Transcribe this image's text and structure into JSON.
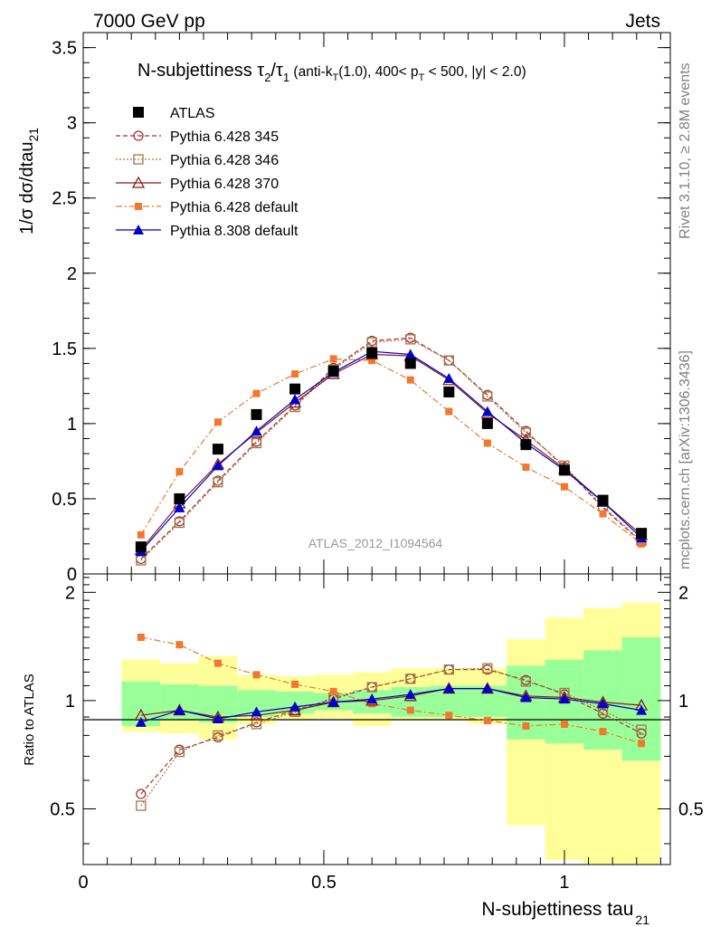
{
  "header": {
    "left": "7000 GeV pp",
    "right": "Jets"
  },
  "side_labels": {
    "rivet": "Rivet 3.1.10, ≥ 2.8M events",
    "mcplots": "mcplots.cern.ch [arXiv:1306.3436]"
  },
  "chart_data": {
    "type": "scatter",
    "title": "N-subjettiness τ₂/τ₁ (anti-k_T(1.0), 400< p_T < 500, |y| < 2.0)",
    "title_parts": {
      "main": "N-subjettiness τ",
      "sub1": "2",
      "slash": "/τ",
      "sub2": "1",
      "cond_a": " (anti-k",
      "cond_a_sub": "T",
      "cond_b": "(1.0), 400< p",
      "cond_b_sub": "T",
      "cond_c": " < 500, |y| < 2.0)"
    },
    "analysis_label": "ATLAS_2012_I1094564",
    "ylabel": "1/σ dσ/dtau",
    "ylabel_sub": "21",
    "xlabel": "N-subjettiness tau",
    "xlabel_sub": "21",
    "ratio_ylabel": "Ratio to ATLAS",
    "xlim": [
      0,
      1.22
    ],
    "ylim": [
      0,
      3.6
    ],
    "ratio_ylim": [
      0.35,
      2.25
    ],
    "x_ticks": [
      0,
      0.5,
      1
    ],
    "x_tick_labels": [
      "0",
      "0.5",
      "1"
    ],
    "y_ticks": [
      0,
      0.5,
      1,
      1.5,
      2,
      2.5,
      3,
      3.5
    ],
    "y_tick_labels": [
      "0",
      "0.5",
      "1",
      "1.5",
      "2",
      "2.5",
      "3",
      "3.5"
    ],
    "ratio_ticks": [
      0.5,
      1,
      2
    ],
    "ratio_tick_labels": [
      "0.5",
      "1",
      "2"
    ],
    "x": [
      0.12,
      0.2,
      0.28,
      0.36,
      0.44,
      0.52,
      0.6,
      0.68,
      0.76,
      0.84,
      0.92,
      1.0,
      1.08,
      1.16
    ],
    "bin_edges": [
      0.08,
      0.16,
      0.24,
      0.32,
      0.4,
      0.48,
      0.56,
      0.64,
      0.72,
      0.8,
      0.88,
      0.96,
      1.04,
      1.12,
      1.2
    ],
    "ratio_band_green": [
      [
        0.85,
        1.13
      ],
      [
        0.88,
        1.11
      ],
      [
        0.87,
        1.1
      ],
      [
        0.9,
        1.07
      ],
      [
        0.92,
        1.06
      ],
      [
        0.94,
        1.05
      ],
      [
        0.92,
        1.07
      ],
      [
        0.9,
        1.09
      ],
      [
        0.9,
        1.1
      ],
      [
        0.9,
        1.1
      ],
      [
        0.78,
        1.25
      ],
      [
        0.76,
        1.3
      ],
      [
        0.73,
        1.38
      ],
      [
        0.68,
        1.5
      ]
    ],
    "ratio_band_yellow": [
      [
        0.82,
        1.3
      ],
      [
        0.81,
        1.27
      ],
      [
        0.78,
        1.33
      ],
      [
        0.86,
        1.18
      ],
      [
        0.88,
        1.17
      ],
      [
        0.89,
        1.18
      ],
      [
        0.85,
        1.2
      ],
      [
        0.88,
        1.23
      ],
      [
        0.88,
        1.23
      ],
      [
        0.86,
        1.23
      ],
      [
        0.45,
        1.48
      ],
      [
        0.36,
        1.7
      ],
      [
        0.35,
        1.81
      ],
      [
        0.35,
        1.87
      ]
    ],
    "series": [
      {
        "name": "ATLAS",
        "color": "#000000",
        "marker": "filled-square",
        "line": "none",
        "values": [
          0.18,
          0.5,
          0.83,
          1.06,
          1.23,
          1.35,
          1.47,
          1.4,
          1.21,
          1.0,
          0.86,
          0.69,
          0.49,
          0.27
        ]
      },
      {
        "name": "Pythia 6.428 345",
        "color": "#a83232",
        "marker": "open-circle",
        "line": "dashed",
        "values": [
          0.1,
          0.35,
          0.62,
          0.88,
          1.12,
          1.37,
          1.55,
          1.57,
          1.42,
          1.19,
          0.95,
          0.71,
          0.44,
          0.21
        ],
        "ratio": [
          0.55,
          0.73,
          0.79,
          0.87,
          0.94,
          1.01,
          1.09,
          1.15,
          1.22,
          1.22,
          1.14,
          1.04,
          0.92,
          0.81
        ]
      },
      {
        "name": "Pythia 6.428 346",
        "color": "#a0784a",
        "marker": "open-square",
        "line": "dotted",
        "values": [
          0.09,
          0.34,
          0.61,
          0.87,
          1.11,
          1.36,
          1.54,
          1.56,
          1.42,
          1.18,
          0.94,
          0.72,
          0.45,
          0.22
        ],
        "ratio": [
          0.51,
          0.72,
          0.8,
          0.86,
          0.93,
          1.02,
          1.09,
          1.15,
          1.22,
          1.23,
          1.13,
          1.05,
          0.94,
          0.83
        ]
      },
      {
        "name": "Pythia 6.428 370",
        "color": "#8b1a1a",
        "marker": "open-triangle",
        "line": "solid",
        "values": [
          0.16,
          0.47,
          0.73,
          0.94,
          1.14,
          1.33,
          1.46,
          1.45,
          1.29,
          1.07,
          0.89,
          0.7,
          0.48,
          0.26
        ],
        "ratio": [
          0.91,
          0.94,
          0.9,
          0.91,
          0.94,
          0.99,
          1.0,
          1.03,
          1.08,
          1.08,
          1.03,
          1.02,
          0.99,
          0.97
        ]
      },
      {
        "name": "Pythia 6.428 default",
        "color": "#f07830",
        "marker": "filled-small-square",
        "line": "dashdot",
        "values": [
          0.26,
          0.68,
          1.01,
          1.2,
          1.33,
          1.43,
          1.42,
          1.29,
          1.08,
          0.87,
          0.71,
          0.58,
          0.4,
          0.2
        ],
        "ratio": [
          1.5,
          1.43,
          1.27,
          1.18,
          1.11,
          1.06,
          0.98,
          0.94,
          0.91,
          0.88,
          0.85,
          0.86,
          0.82,
          0.76
        ]
      },
      {
        "name": "Pythia 8.308 default",
        "color": "#0000cc",
        "marker": "filled-triangle",
        "line": "solid",
        "values": [
          0.15,
          0.44,
          0.72,
          0.95,
          1.16,
          1.34,
          1.48,
          1.46,
          1.3,
          1.08,
          0.87,
          0.69,
          0.48,
          0.24
        ],
        "ratio": [
          0.87,
          0.94,
          0.89,
          0.93,
          0.96,
          0.99,
          1.01,
          1.04,
          1.08,
          1.08,
          1.02,
          1.01,
          0.98,
          0.94
        ]
      }
    ]
  }
}
